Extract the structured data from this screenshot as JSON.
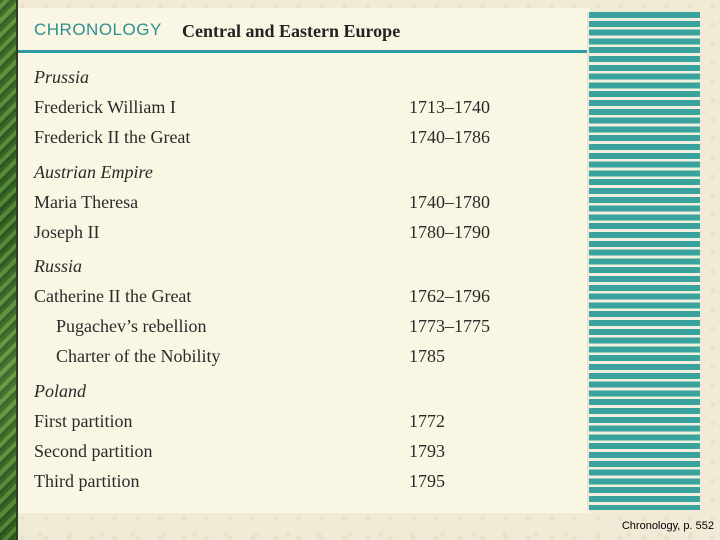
{
  "header": {
    "brand": "CHRONOLOGY",
    "title": "Central and Eastern Europe"
  },
  "sections": [
    {
      "heading": "Prussia",
      "rows": [
        {
          "label": "Frederick William I",
          "date": "1713–1740"
        },
        {
          "label": "Frederick II the Great",
          "date": "1740–1786"
        }
      ]
    },
    {
      "heading": "Austrian Empire",
      "rows": [
        {
          "label": "Maria Theresa",
          "date": "1740–1780"
        },
        {
          "label": "Joseph II",
          "date": "1780–1790"
        }
      ]
    },
    {
      "heading": "Russia",
      "rows": [
        {
          "label": "Catherine II the Great",
          "date": "1762–1796"
        },
        {
          "label": "Pugachev’s rebellion",
          "date": "1773–1775"
        },
        {
          "label": "Charter of the Nobility",
          "date": "1785"
        }
      ]
    },
    {
      "heading": "Poland",
      "rows": [
        {
          "label": "First partition",
          "date": "1772"
        },
        {
          "label": "Second partition",
          "date": "1793"
        },
        {
          "label": "Third partition",
          "date": "1795"
        }
      ]
    }
  ],
  "caption": "Chronology, p. 552",
  "colors": {
    "accent": "#2f9aa0",
    "panel": "#f9f6e3",
    "page": "#f1ead6"
  }
}
